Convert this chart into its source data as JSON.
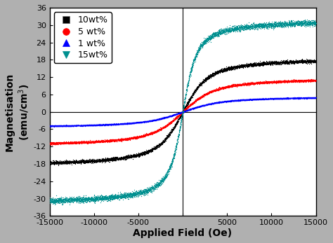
{
  "title": "",
  "xlabel": "Applied Field (Oe)",
  "ylabel_line1": "Magnetisation",
  "ylabel_line2": "(emu/cm³)",
  "xlim": [
    -15000,
    15000
  ],
  "ylim": [
    -36,
    36
  ],
  "xticks": [
    -15000,
    -10000,
    -5000,
    0,
    5000,
    10000,
    15000
  ],
  "yticks": [
    -36,
    -30,
    -24,
    -18,
    -12,
    -6,
    0,
    6,
    12,
    18,
    24,
    30,
    36
  ],
  "series": [
    {
      "label": "10wt%",
      "color": "#000000",
      "marker": "s",
      "Ms": 19.0,
      "a": 1100,
      "seed": 10
    },
    {
      "label": "5 wt%",
      "color": "#ff0000",
      "marker": "o",
      "Ms": 12.0,
      "a": 1400,
      "seed": 20
    },
    {
      "label": "1 wt%",
      "color": "#0000ff",
      "marker": "^",
      "Ms": 5.5,
      "a": 1700,
      "seed": 30
    },
    {
      "label": "15wt%",
      "color": "#009090",
      "marker": "v",
      "Ms": 32.0,
      "a": 600,
      "seed": 40
    }
  ],
  "plot_bg": "#ffffff",
  "figure_bg": "#b0b0b0",
  "legend_fontsize": 9,
  "axis_fontsize": 10,
  "tick_fontsize": 8,
  "figure_width": 4.74,
  "figure_height": 3.47,
  "dpi": 100
}
